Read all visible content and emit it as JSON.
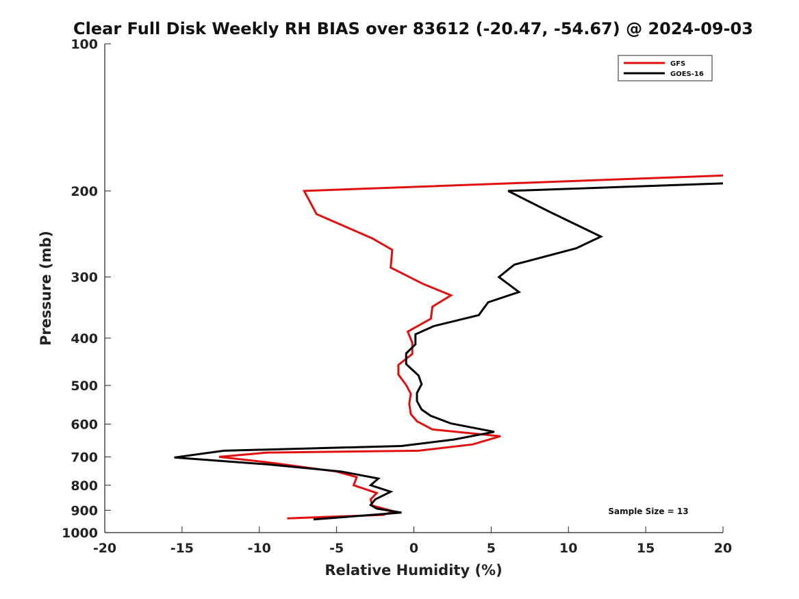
{
  "chart_data": {
    "type": "line",
    "title": "Clear Full Disk Weekly RH BIAS over 83612 (-20.47, -54.67) @ 2024-09-03",
    "xlabel": "Relative Humidity (%)",
    "ylabel": "Pressure (mb)",
    "xlim": [
      -20,
      20
    ],
    "ylim": [
      100,
      1000
    ],
    "y_scale": "log",
    "y_reversed": true,
    "grid": false,
    "legend_position": "top-right",
    "x_ticks": [
      "-20",
      "-15",
      "-10",
      "-5",
      "0",
      "5",
      "10",
      "15",
      "20"
    ],
    "y_ticks": [
      "100",
      "200",
      "300",
      "400",
      "500",
      "600",
      "700",
      "800",
      "900",
      "1000"
    ],
    "annotation": "Sample Size = 13",
    "series": [
      {
        "name": "GFS",
        "color": "#e01010",
        "points": [
          [
            20,
            186
          ],
          [
            -7.1,
            200
          ],
          [
            -6.3,
            223
          ],
          [
            -2.7,
            250
          ],
          [
            -1.4,
            264
          ],
          [
            -1.5,
            287
          ],
          [
            0.6,
            310
          ],
          [
            2.4,
            327
          ],
          [
            1.2,
            345
          ],
          [
            1.1,
            365
          ],
          [
            -0.4,
            388
          ],
          [
            -0.1,
            409
          ],
          [
            -0.1,
            431
          ],
          [
            -1.0,
            454
          ],
          [
            -1.0,
            475
          ],
          [
            -0.5,
            499
          ],
          [
            -0.2,
            520
          ],
          [
            -0.3,
            545
          ],
          [
            -0.2,
            572
          ],
          [
            0.2,
            592
          ],
          [
            1.2,
            615
          ],
          [
            5.6,
            635
          ],
          [
            3.8,
            660
          ],
          [
            0.3,
            680
          ],
          [
            -9.5,
            686
          ],
          [
            -12.6,
            700
          ],
          [
            -9.2,
            720
          ],
          [
            -5.0,
            750
          ],
          [
            -3.7,
            770
          ],
          [
            -3.9,
            800
          ],
          [
            -2.4,
            830
          ],
          [
            -2.8,
            855
          ],
          [
            -2.7,
            880
          ],
          [
            -1.3,
            905
          ],
          [
            -2.0,
            920
          ],
          [
            -8.2,
            935
          ]
        ]
      },
      {
        "name": "GOES-16",
        "color": "#000000",
        "points": [
          [
            20,
            193
          ],
          [
            6.1,
            200
          ],
          [
            8.7,
            220
          ],
          [
            12.1,
            248
          ],
          [
            10.5,
            262
          ],
          [
            6.5,
            283
          ],
          [
            5.5,
            300
          ],
          [
            6.8,
            322
          ],
          [
            4.8,
            338
          ],
          [
            4.2,
            359
          ],
          [
            1.3,
            378
          ],
          [
            0.1,
            393
          ],
          [
            0.1,
            412
          ],
          [
            -0.5,
            430
          ],
          [
            -0.5,
            452
          ],
          [
            0.3,
            477
          ],
          [
            0.5,
            497
          ],
          [
            0.2,
            518
          ],
          [
            0.2,
            538
          ],
          [
            0.5,
            560
          ],
          [
            1.1,
            577
          ],
          [
            2.4,
            598
          ],
          [
            5.2,
            622
          ],
          [
            2.6,
            645
          ],
          [
            -0.8,
            665
          ],
          [
            -12.3,
            680
          ],
          [
            -15.5,
            702
          ],
          [
            -9.5,
            725
          ],
          [
            -4.7,
            750
          ],
          [
            -2.3,
            775
          ],
          [
            -2.8,
            800
          ],
          [
            -1.5,
            825
          ],
          [
            -2.5,
            855
          ],
          [
            -2.8,
            878
          ],
          [
            -2.4,
            893
          ],
          [
            -0.8,
            910
          ],
          [
            -6.5,
            940
          ]
        ]
      }
    ]
  }
}
